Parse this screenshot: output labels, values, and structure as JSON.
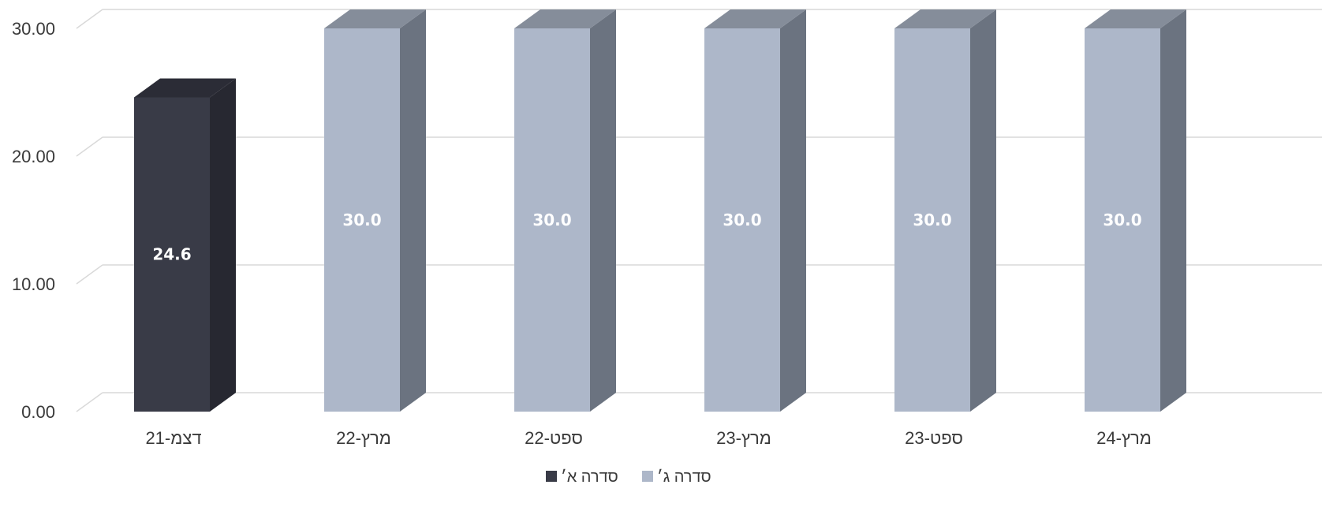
{
  "chart_data": {
    "type": "bar",
    "three_d": true,
    "categories": [
      "דצמ-21",
      "מרץ-22",
      "ספט-22",
      "מרץ-23",
      "ספט-23",
      "מרץ-24"
    ],
    "series": [
      {
        "name": "סדרה א׳",
        "color": "#393b47",
        "side_color": "#272831",
        "top_color": "#2b2c36",
        "values": [
          24.6,
          null,
          null,
          null,
          null,
          null
        ]
      },
      {
        "name": "סדרה ג׳",
        "color": "#adb7c9",
        "side_color": "#6b7380",
        "top_color": "#858d9a",
        "values": [
          null,
          30.0,
          30.0,
          30.0,
          30.0,
          30.0
        ]
      }
    ],
    "data_labels": [
      "24.6",
      "30.0",
      "30.0",
      "30.0",
      "30.0",
      "30.0"
    ],
    "y_ticks": [
      "0.00",
      "10.00",
      "20.00",
      "30.00"
    ],
    "ylim": [
      0,
      30
    ],
    "grid": true,
    "legend_position": "bottom",
    "legend_order": [
      "סדרה ג׳",
      "סדרה א׳"
    ],
    "title": "",
    "xlabel": "",
    "ylabel": ""
  }
}
